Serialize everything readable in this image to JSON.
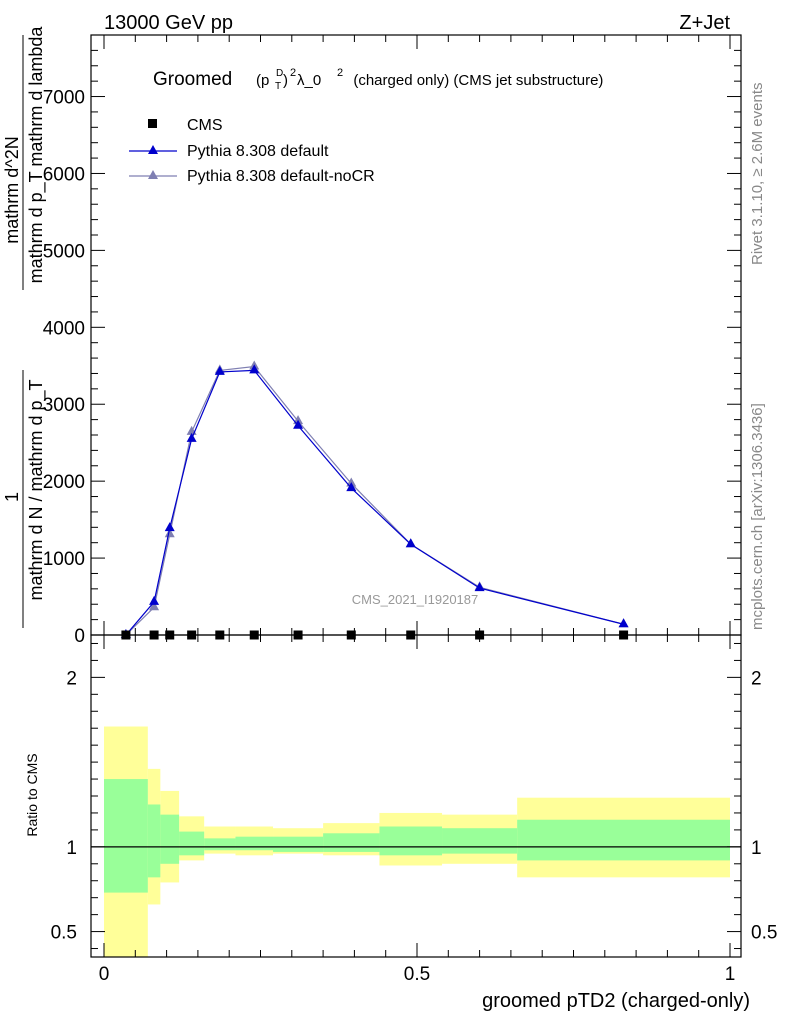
{
  "header": {
    "energy_label": "13000 GeV pp",
    "process_label": "Z+Jet",
    "rivet_label": "Rivet 3.1.10, ≥ 2.6M events",
    "mcplots_label": "mcplots.cern.ch [arXiv:1306.3436]",
    "analysis_label": "CMS_2021_I1920187"
  },
  "title": {
    "prefix": "Groomed",
    "formula": "(p",
    "sub": "T",
    "sup": "D",
    "close": ")",
    "power": "2",
    "rest": " λ_0",
    "rest_power": "2",
    "suffix": "  (charged only) (CMS jet substructure)"
  },
  "legend": [
    {
      "label": "CMS",
      "color": "#000000",
      "marker": "square"
    },
    {
      "label": "Pythia 8.308 default",
      "color": "#0000cc",
      "marker": "triangle"
    },
    {
      "label": "Pythia 8.308 default-noCR",
      "color": "#7f7fb2",
      "marker": "triangle"
    }
  ],
  "ylabel_main": {
    "numerator": "1",
    "denominator": "mathrm d N / mathrm d p_T",
    "right_num": "mathrm d^2N",
    "right_den": "mathrm d p_T mathrm d lambda"
  },
  "ylabel_ratio": "Ratio to CMS",
  "xlabel": "groomed pTD2 (charged-only)",
  "chart_data": {
    "type": "line",
    "xlim": [
      0,
      1
    ],
    "main_ylim": [
      0,
      7800
    ],
    "ratio_ylim": [
      0.35,
      2.25
    ],
    "main_yticks": [
      {
        "v": 0,
        "label": "0"
      },
      {
        "v": 1000,
        "label": "1000"
      },
      {
        "v": 2000,
        "label": "2000"
      },
      {
        "v": 3000,
        "label": "3000"
      },
      {
        "v": 4000,
        "label": "4000"
      },
      {
        "v": 5000,
        "label": "5000"
      },
      {
        "v": 6000,
        "label": "6000"
      },
      {
        "v": 7000,
        "label": "7000"
      }
    ],
    "ratio_yticks": [
      {
        "v": 0.5,
        "label": "0.5"
      },
      {
        "v": 1,
        "label": "1"
      },
      {
        "v": 2,
        "label": "2"
      }
    ],
    "xticks": [
      {
        "v": 0,
        "label": "0"
      },
      {
        "v": 0.5,
        "label": "0.5"
      },
      {
        "v": 1,
        "label": "1"
      }
    ],
    "bin_edges": [
      0,
      0.07,
      0.09,
      0.12,
      0.16,
      0.21,
      0.27,
      0.35,
      0.44,
      0.54,
      0.66,
      1.0
    ],
    "cms_x": [
      0.035,
      0.08,
      0.105,
      0.14,
      0.185,
      0.24,
      0.31,
      0.395,
      0.49,
      0.6,
      0.83
    ],
    "cms_y": [
      0,
      0,
      0,
      0,
      0,
      0,
      0,
      0,
      0,
      0,
      0
    ],
    "series": [
      {
        "name": "Pythia 8.308 default",
        "x": [
          0.035,
          0.08,
          0.105,
          0.14,
          0.185,
          0.24,
          0.31,
          0.395,
          0.49,
          0.6,
          0.83
        ],
        "y": [
          0,
          430,
          1390,
          2550,
          3420,
          3440,
          2720,
          1910,
          1180,
          610,
          140
        ]
      },
      {
        "name": "Pythia 8.308 default-noCR",
        "x": [
          0.035,
          0.08,
          0.105,
          0.14,
          0.185,
          0.24,
          0.31,
          0.395,
          0.49,
          0.6,
          0.83
        ],
        "y": [
          0,
          360,
          1310,
          2640,
          3440,
          3490,
          2780,
          1970,
          1180,
          620,
          140
        ]
      }
    ],
    "band_yellow": [
      [
        0.35,
        1.71
      ],
      [
        0.66,
        1.46
      ],
      [
        0.79,
        1.33
      ],
      [
        0.92,
        1.18
      ],
      [
        0.96,
        1.12
      ],
      [
        0.95,
        1.12
      ],
      [
        0.96,
        1.11
      ],
      [
        0.95,
        1.14
      ],
      [
        0.89,
        1.2
      ],
      [
        0.9,
        1.19
      ],
      [
        0.82,
        1.29
      ]
    ],
    "band_green": [
      [
        0.73,
        1.4
      ],
      [
        0.82,
        1.25
      ],
      [
        0.9,
        1.19
      ],
      [
        0.95,
        1.09
      ],
      [
        0.98,
        1.05
      ],
      [
        0.98,
        1.06
      ],
      [
        0.97,
        1.06
      ],
      [
        0.97,
        1.08
      ],
      [
        0.95,
        1.12
      ],
      [
        0.96,
        1.11
      ],
      [
        0.92,
        1.16
      ]
    ]
  }
}
